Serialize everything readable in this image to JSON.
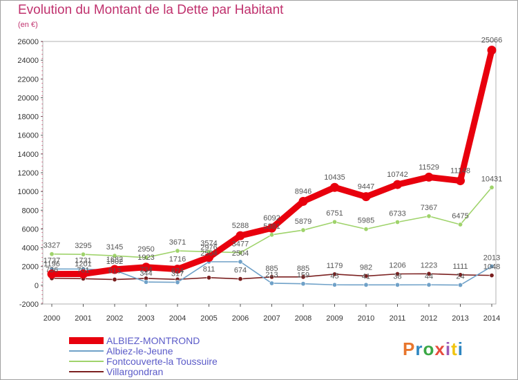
{
  "header": {
    "title": "Evolution du Montant de la Dette par Habitant",
    "subtitle": "(en €)"
  },
  "logo": {
    "text": "Proxiti",
    "colors": [
      "#e8762d",
      "#2e86c1",
      "#3aa845",
      "#e74c3c",
      "#9b59b6",
      "#f1c40f",
      "#2e86c1"
    ]
  },
  "chart_data": {
    "type": "line",
    "title": "Evolution du Montant de la Dette par Habitant",
    "subtitle": "(en €)",
    "xlabel": "",
    "ylabel": "",
    "ylim": [
      -2000,
      26000
    ],
    "yticks": [
      -2000,
      0,
      2000,
      4000,
      6000,
      8000,
      10000,
      12000,
      14000,
      16000,
      18000,
      20000,
      22000,
      24000,
      26000
    ],
    "categories": [
      "2000",
      "2001",
      "2002",
      "2003",
      "2004",
      "2005",
      "2006",
      "2007",
      "2008",
      "2009",
      "2010",
      "2011",
      "2012",
      "2013",
      "2014"
    ],
    "legend_position": "bottom-left",
    "series": [
      {
        "name": "Villargondran",
        "color": "#7a1f1f",
        "values": [
          736,
          701,
          613,
          734,
          624,
          811,
          674,
          885,
          885,
          1179,
          982,
          1206,
          1223,
          1111,
          1048
        ],
        "labels": [
          "736",
          "701",
          "613",
          "734",
          "624",
          "811",
          "674",
          "885",
          "885",
          "1179",
          "982",
          "1206",
          "1223",
          "1111",
          "1048"
        ]
      },
      {
        "name": "Albiez-le-Jeune",
        "color": "#6fa1c8",
        "values": [
          1737,
          1731,
          1602,
          344,
          317,
          2504,
          2504,
          213,
          159,
          45,
          41,
          38,
          44,
          24,
          2013
        ],
        "labels": [
          "1737",
          "1731",
          "1602",
          "344",
          "317",
          "2504",
          "2504",
          "213",
          "159",
          "45",
          "41",
          "38",
          "44",
          "24",
          "2013"
        ]
      },
      {
        "name": "Fontcouverte-la Toussuire",
        "color": "#9fd36b",
        "values": [
          3327,
          3295,
          3145,
          2950,
          3671,
          3574,
          3477,
          5381,
          5879,
          6751,
          5985,
          6733,
          7367,
          6475,
          10431
        ],
        "labels": [
          "3327",
          "3295",
          "3145",
          "2950",
          "3671",
          "3574",
          "3477",
          "5381",
          "5879",
          "6751",
          "5985",
          "6733",
          "7367",
          "6475",
          "10431"
        ]
      },
      {
        "name": "ALBIEZ-MONTROND",
        "color": "#e8000d",
        "values": [
          1196,
          1201,
          1682,
          1923,
          1716,
          2976,
          5288,
          6092,
          8946,
          10435,
          9447,
          10742,
          11529,
          11148,
          25066
        ],
        "labels": [
          "1196",
          "1201",
          "1682",
          "1923",
          "1716",
          "2976",
          "5288",
          "6092",
          "8946",
          "10435",
          "9447",
          "10742",
          "11529",
          "11148",
          "25066"
        ]
      }
    ]
  }
}
